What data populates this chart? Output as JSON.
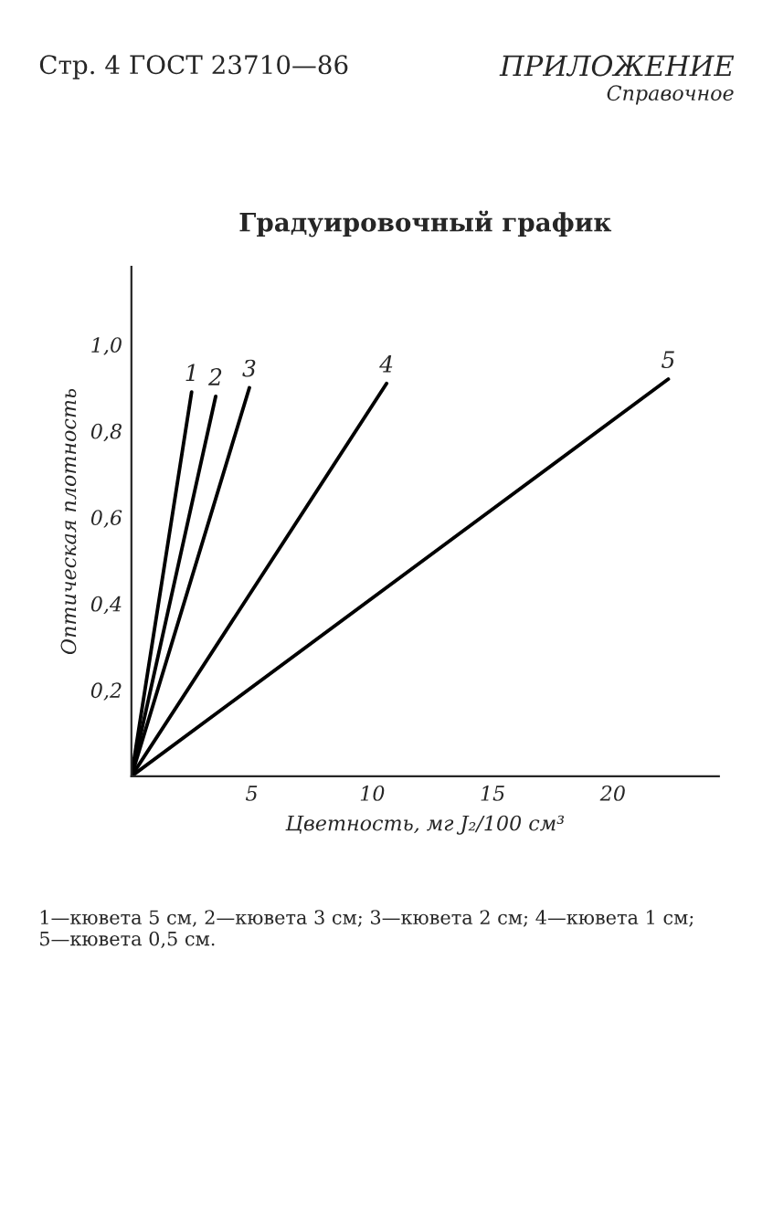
{
  "chart_data": {
    "type": "line",
    "title": "Градуировочный график",
    "xlabel": "Цветность, мг J₂/100 см³",
    "ylabel": "Оптическая плотность",
    "xlim": [
      0,
      24.4
    ],
    "ylim": [
      0,
      1.18
    ],
    "xticks": [
      5,
      10,
      15,
      20
    ],
    "yticks": [
      {
        "value": 0.2,
        "label": "0,2"
      },
      {
        "value": 0.4,
        "label": "0,4"
      },
      {
        "value": 0.6,
        "label": "0,6"
      },
      {
        "value": 0.8,
        "label": "0,8"
      },
      {
        "value": 1.0,
        "label": "1,0"
      }
    ],
    "grid": false,
    "legend": false,
    "marker": "none",
    "line_style": "solid",
    "series": [
      {
        "name": "1",
        "color": "#000000",
        "x": [
          0,
          2.5
        ],
        "values": [
          0,
          0.89
        ]
      },
      {
        "name": "2",
        "color": "#000000",
        "x": [
          0,
          3.5
        ],
        "values": [
          0,
          0.88
        ]
      },
      {
        "name": "3",
        "color": "#000000",
        "x": [
          0,
          4.9
        ],
        "values": [
          0,
          0.9
        ]
      },
      {
        "name": "4",
        "color": "#000000",
        "x": [
          0,
          10.6
        ],
        "values": [
          0,
          0.91
        ]
      },
      {
        "name": "5",
        "color": "#000000",
        "x": [
          0,
          22.3
        ],
        "values": [
          0,
          0.92
        ]
      }
    ],
    "annotations": [
      "Стр. 4 ГОСТ 23710—86",
      "ПРИЛОЖЕНИЕ",
      "Справочное",
      "1—кювета 5 см, 2—кювета 3 см; 3—кювета 2 см; 4—кювета 1 см; 5—кювета 0,5 см."
    ]
  }
}
